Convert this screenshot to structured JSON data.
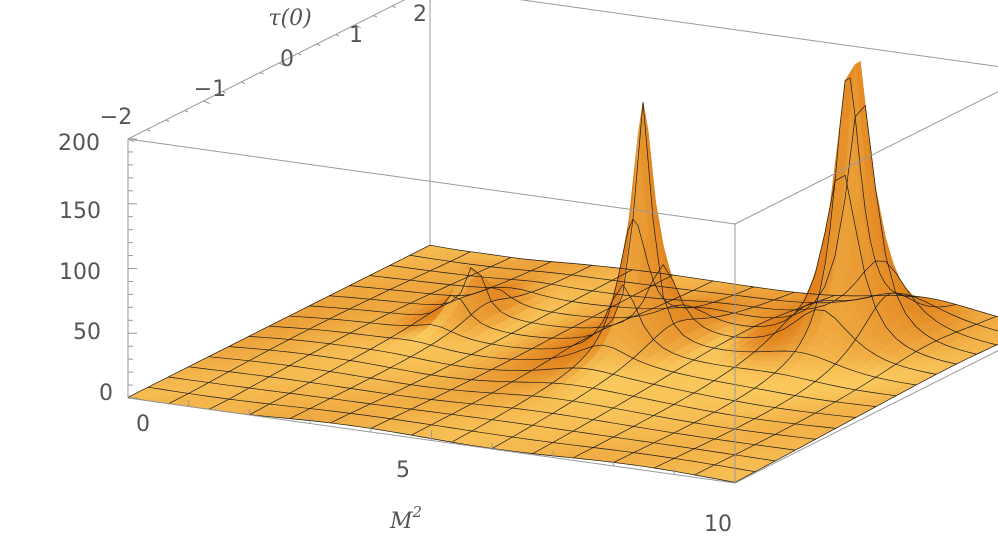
{
  "chart_data": {
    "type": "surface3d",
    "title": "",
    "axes": {
      "x": {
        "label_main": "M",
        "label_sup": "2",
        "range": [
          0,
          10
        ],
        "ticks": [
          "0",
          "5",
          "10"
        ],
        "tick_values": [
          0,
          5,
          10
        ]
      },
      "y": {
        "label": "τ(0)",
        "range": [
          -2,
          2
        ],
        "ticks": [
          "−2",
          "−1",
          "0",
          "1",
          "2"
        ],
        "tick_values": [
          -2,
          -1,
          0,
          1,
          2
        ]
      },
      "z": {
        "label": "",
        "range": [
          0,
          200
        ],
        "ticks": [
          "0",
          "50",
          "100",
          "150",
          "200"
        ],
        "tick_values": [
          0,
          50,
          100,
          150,
          200
        ]
      }
    },
    "peaks": [
      {
        "x": 2.4,
        "y": 0.6,
        "z": 45
      },
      {
        "x": 5.5,
        "y": 0.4,
        "z": 190
      },
      {
        "x": 8.1,
        "y": 1.1,
        "z": 240
      }
    ],
    "grid_lines": true,
    "mesh_divisions": 15,
    "colors": {
      "surface_base": "#e07f1a",
      "surface_highlight": "#ffd66a",
      "mesh": "#1b1b1b",
      "box": "#9a9a9a",
      "text": "#555555"
    }
  }
}
